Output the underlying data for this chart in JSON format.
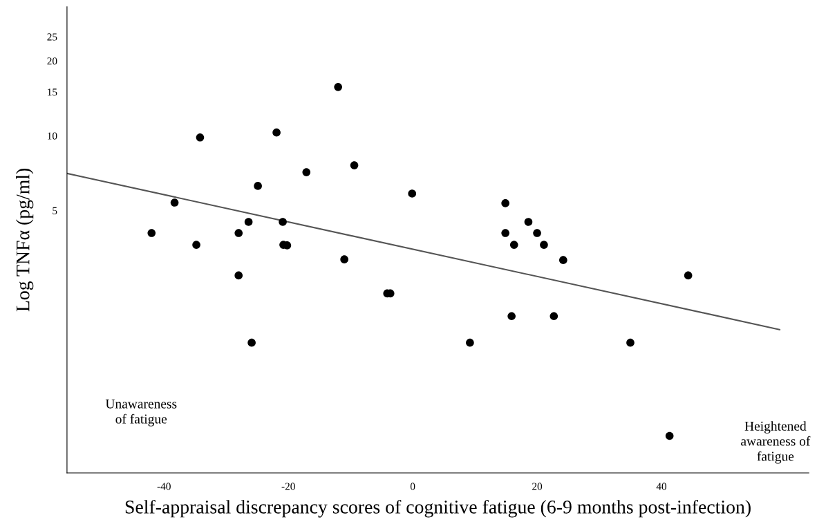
{
  "chart_data": {
    "type": "scatter",
    "xlabel": "Self-appraisal discrepancy scores of cognitive fatigue (6-9 months post-infection)",
    "ylabel": "Log TNFα (pg/ml)",
    "log": "y",
    "grid": false,
    "xlim": [
      -55.6,
      63.7
    ],
    "ylim": [
      0.44,
      33
    ],
    "xticks": [
      -40,
      -20,
      0,
      20,
      40
    ],
    "yticks": [
      5,
      10,
      15,
      20,
      25
    ],
    "annotations": [
      "Unawareness\nof fatigue",
      "Heightened\nawareness of\nfatigue"
    ],
    "series": [
      {
        "marker": "circle",
        "color": "#000000",
        "x": [
          -42.0,
          -38.3,
          -34.2,
          -34.8,
          -28.0,
          -28.0,
          -26.4,
          -25.9,
          -24.9,
          -21.9,
          -20.9,
          -20.8,
          -20.2,
          -17.1,
          -12.0,
          -11.0,
          -9.4,
          -4.1,
          -3.6,
          -0.1,
          9.2,
          14.9,
          14.9,
          16.3,
          15.9,
          18.6,
          20.0,
          21.1,
          22.7,
          24.2,
          35.0,
          41.3,
          44.3
        ],
        "values": [
          4.06,
          5.38,
          9.84,
          3.64,
          4.06,
          2.74,
          4.5,
          1.47,
          6.28,
          10.3,
          4.5,
          3.64,
          3.62,
          7.13,
          15.7,
          3.18,
          7.6,
          2.32,
          2.32,
          5.85,
          1.47,
          5.35,
          4.06,
          3.64,
          1.88,
          4.5,
          4.06,
          3.64,
          1.88,
          3.16,
          1.47,
          0.62,
          2.74
        ]
      },
      {
        "type": "line",
        "color": "#555555",
        "x": [
          -55.6,
          59.0
        ],
        "values": [
          7.05,
          1.66
        ]
      }
    ]
  }
}
